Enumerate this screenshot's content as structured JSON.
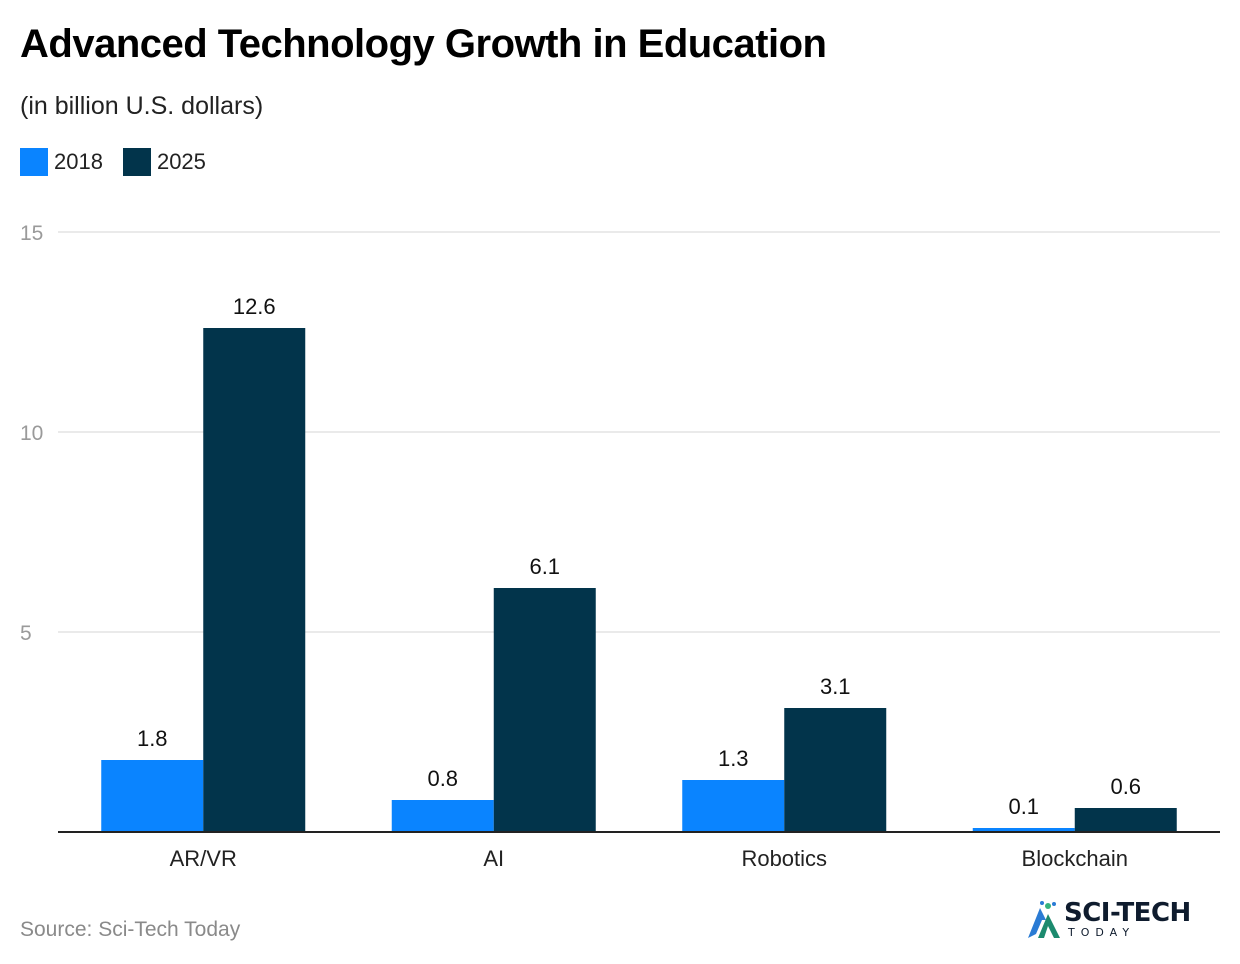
{
  "header": {
    "title": "Advanced Technology Growth in Education",
    "subtitle": "(in billion U.S. dollars)"
  },
  "legend": {
    "items": [
      {
        "label": "2018",
        "color": "#0a84ff"
      },
      {
        "label": "2025",
        "color": "#02344b"
      }
    ]
  },
  "chart_data": {
    "type": "bar",
    "title": "Advanced Technology Growth in Education",
    "subtitle": "(in billion U.S. dollars)",
    "categories": [
      "AR/VR",
      "AI",
      "Robotics",
      "Blockchain"
    ],
    "series": [
      {
        "name": "2018",
        "color": "#0a84ff",
        "values": [
          1.8,
          0.8,
          1.3,
          0.1
        ],
        "labels": [
          "1.8",
          "0.8",
          "1.3",
          "0.1"
        ]
      },
      {
        "name": "2025",
        "color": "#02344b",
        "values": [
          12.6,
          6.1,
          3.1,
          0.6
        ],
        "labels": [
          "12.6",
          "6.1",
          "3.1",
          "0.6"
        ]
      }
    ],
    "ylim": [
      0,
      15
    ],
    "yticks": [
      5,
      10,
      15
    ],
    "ytick_labels": [
      "5",
      "10",
      "15"
    ],
    "grid": true,
    "legend_position": "top-left",
    "xlabel": "",
    "ylabel": ""
  },
  "footer": {
    "source": "Source: Sci-Tech Today",
    "logo_text": "SCI-TECH",
    "logo_subtext": "TODAY"
  }
}
